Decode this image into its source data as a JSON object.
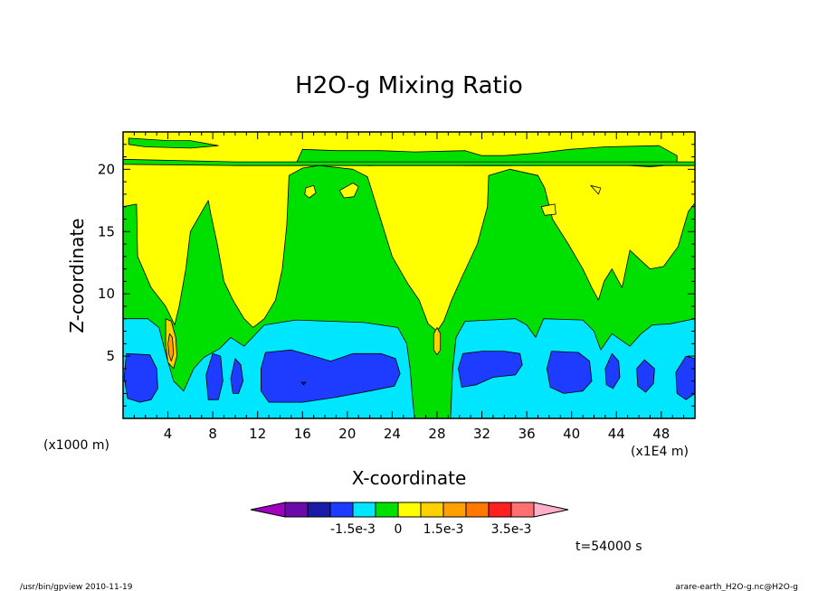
{
  "chart_data": {
    "type": "heatmap",
    "title": "H2O-g Mixing Ratio",
    "xlabel": "X-coordinate",
    "ylabel": "Z-coordinate",
    "x_unit": "(x1E4 m)",
    "y_unit": "(x1000 m)",
    "xlim": [
      0,
      51
    ],
    "ylim": [
      0,
      23
    ],
    "x_ticks": [
      4,
      8,
      12,
      16,
      20,
      24,
      28,
      32,
      36,
      40,
      44,
      48
    ],
    "y_ticks": [
      5,
      10,
      15,
      20
    ],
    "colorbar": {
      "colors": [
        "#a000c0",
        "#6a0aa8",
        "#1a1aa8",
        "#1e3cff",
        "#00e6ff",
        "#00e000",
        "#ffff00",
        "#ffd000",
        "#ffa000",
        "#ff7800",
        "#ff2020",
        "#ff7070",
        "#ffb0c8"
      ],
      "labels": [
        "-1.5e-3",
        "0",
        "1.5e-3",
        "3.5e-3"
      ]
    },
    "time_label": "t=54000 s",
    "regions": [
      {
        "color": "#00e000",
        "poly": [
          [
            0,
            17
          ],
          [
            1.2,
            17.2
          ],
          [
            1.3,
            13
          ],
          [
            2.5,
            10.5
          ],
          [
            3.8,
            9
          ],
          [
            4.6,
            7.5
          ],
          [
            5,
            9
          ],
          [
            5.6,
            12
          ],
          [
            6,
            15
          ],
          [
            7.6,
            17.5
          ],
          [
            7.8,
            16.5
          ],
          [
            8.4,
            14
          ],
          [
            9,
            11
          ],
          [
            9.8,
            9.5
          ],
          [
            10.8,
            8
          ],
          [
            11.6,
            7.3
          ],
          [
            12.6,
            8
          ],
          [
            13.6,
            9.5
          ],
          [
            14.2,
            12
          ],
          [
            14.6,
            15.5
          ],
          [
            14.8,
            19.5
          ],
          [
            16,
            20.1
          ],
          [
            17.5,
            20.3
          ],
          [
            20.5,
            20
          ],
          [
            21.8,
            19.4
          ],
          [
            22.8,
            16.5
          ],
          [
            24,
            13
          ],
          [
            25.4,
            10.8
          ],
          [
            26.4,
            9.5
          ],
          [
            27.2,
            7.6
          ],
          [
            28,
            7
          ],
          [
            28.6,
            7.8
          ],
          [
            29.3,
            9.5
          ],
          [
            30.3,
            11.5
          ],
          [
            31.6,
            14
          ],
          [
            32.5,
            17
          ],
          [
            32.6,
            19.5
          ],
          [
            34.5,
            20
          ],
          [
            37,
            19.5
          ],
          [
            37.6,
            18.5
          ],
          [
            38.3,
            16
          ],
          [
            39.7,
            14
          ],
          [
            41,
            12
          ],
          [
            41.8,
            10.5
          ],
          [
            42.4,
            9.5
          ],
          [
            42.9,
            11
          ],
          [
            43.6,
            12
          ],
          [
            44.5,
            10.5
          ],
          [
            45.2,
            13.5
          ],
          [
            47,
            12
          ],
          [
            48.2,
            12.2
          ],
          [
            49.5,
            13.8
          ],
          [
            50.4,
            16.6
          ],
          [
            51,
            17.3
          ],
          [
            51,
            0
          ],
          [
            0,
            0
          ]
        ]
      },
      {
        "color": "#00e000",
        "poly": [
          [
            15.5,
            20.6
          ],
          [
            16,
            21.6
          ],
          [
            19,
            21.5
          ],
          [
            23,
            21.5
          ],
          [
            26,
            21.4
          ],
          [
            30.5,
            21.5
          ],
          [
            32,
            21.1
          ],
          [
            34,
            21.1
          ],
          [
            37,
            21.3
          ],
          [
            39.8,
            21.6
          ],
          [
            43,
            21.8
          ],
          [
            47.8,
            21.9
          ],
          [
            49.4,
            21.1
          ],
          [
            49.4,
            20.4
          ],
          [
            47,
            20.2
          ],
          [
            43.5,
            20.4
          ],
          [
            38.5,
            20.5
          ],
          [
            34.5,
            20.3
          ],
          [
            30.5,
            20.3
          ],
          [
            26.5,
            20.4
          ],
          [
            22,
            20.3
          ],
          [
            18,
            20.4
          ],
          [
            15.5,
            20.6
          ]
        ]
      },
      {
        "color": "#00e000",
        "poly": [
          [
            0.5,
            22.5
          ],
          [
            4,
            22.3
          ],
          [
            6,
            22.3
          ],
          [
            8.5,
            21.9
          ],
          [
            6,
            21.7
          ],
          [
            2,
            21.8
          ],
          [
            0.5,
            22
          ]
        ]
      },
      {
        "color": "#00e000",
        "poly": [
          [
            0,
            20.8
          ],
          [
            10,
            20.6
          ],
          [
            20,
            20.6
          ],
          [
            30,
            20.6
          ],
          [
            40,
            20.6
          ],
          [
            51,
            20.6
          ],
          [
            51,
            20.3
          ],
          [
            40,
            20.3
          ],
          [
            30,
            20.3
          ],
          [
            20,
            20.3
          ],
          [
            10,
            20.3
          ],
          [
            0,
            20.4
          ]
        ]
      },
      {
        "color": "#00e6ff",
        "poly": [
          [
            0,
            8
          ],
          [
            2.2,
            8
          ],
          [
            3.2,
            7.3
          ],
          [
            3.8,
            5.2
          ],
          [
            4.5,
            3
          ],
          [
            5.4,
            2.2
          ],
          [
            6.3,
            4
          ],
          [
            7.2,
            4.9
          ],
          [
            8.6,
            5.6
          ],
          [
            9.6,
            6.5
          ],
          [
            10.8,
            5.8
          ],
          [
            12.6,
            7.5
          ],
          [
            15.4,
            7.9
          ],
          [
            21.5,
            7.7
          ],
          [
            24.5,
            7.3
          ],
          [
            25.3,
            6
          ],
          [
            25.6,
            4
          ],
          [
            25.8,
            1.8
          ],
          [
            26,
            0
          ],
          [
            0,
            0
          ]
        ]
      },
      {
        "color": "#00e6ff",
        "poly": [
          [
            29.2,
            0
          ],
          [
            29.4,
            4
          ],
          [
            29.7,
            6.5
          ],
          [
            30.5,
            7.8
          ],
          [
            35,
            8
          ],
          [
            36,
            7.5
          ],
          [
            36.8,
            6.5
          ],
          [
            37.5,
            8
          ],
          [
            41,
            7.9
          ],
          [
            42,
            7
          ],
          [
            42.6,
            5.5
          ],
          [
            43.6,
            6.8
          ],
          [
            45.2,
            5.8
          ],
          [
            46.2,
            6.8
          ],
          [
            47.2,
            7.5
          ],
          [
            48.8,
            7.6
          ],
          [
            51,
            8
          ],
          [
            51,
            0
          ]
        ]
      },
      {
        "color": "#1e3cff",
        "poly": [
          [
            0.3,
            5.2
          ],
          [
            2.4,
            5.1
          ],
          [
            3,
            4
          ],
          [
            3.1,
            2.4
          ],
          [
            2.5,
            1.5
          ],
          [
            1.5,
            1.3
          ],
          [
            0.4,
            1.6
          ],
          [
            0.1,
            3.3
          ]
        ]
      },
      {
        "color": "#1e3cff",
        "poly": [
          [
            8,
            5.2
          ],
          [
            8.7,
            5
          ],
          [
            8.9,
            3
          ],
          [
            8.5,
            1.5
          ],
          [
            7.6,
            1.5
          ],
          [
            7.4,
            3.5
          ]
        ]
      },
      {
        "color": "#1e3cff",
        "poly": [
          [
            10,
            4.8
          ],
          [
            10.5,
            4.3
          ],
          [
            10.7,
            3
          ],
          [
            10.3,
            2
          ],
          [
            9.8,
            2
          ],
          [
            9.6,
            3.2
          ]
        ]
      },
      {
        "color": "#1e3cff",
        "poly": [
          [
            12.7,
            5.3
          ],
          [
            15,
            5.5
          ],
          [
            17,
            5
          ],
          [
            18.5,
            4.6
          ],
          [
            20.5,
            5.2
          ],
          [
            23,
            5.2
          ],
          [
            24.3,
            4.8
          ],
          [
            24.7,
            3.6
          ],
          [
            24.2,
            2.6
          ],
          [
            22,
            2.2
          ],
          [
            19,
            1.7
          ],
          [
            16,
            1.3
          ],
          [
            13,
            1.3
          ],
          [
            12.3,
            2.2
          ],
          [
            12.3,
            4
          ]
        ]
      },
      {
        "color": "#1e3cff",
        "poly": [
          [
            30.3,
            5.2
          ],
          [
            32,
            5.4
          ],
          [
            34,
            5.4
          ],
          [
            35.4,
            5.2
          ],
          [
            35.6,
            4.3
          ],
          [
            35,
            3.5
          ],
          [
            33,
            3.3
          ],
          [
            31.5,
            2.7
          ],
          [
            30.2,
            2.5
          ],
          [
            29.9,
            4
          ]
        ]
      },
      {
        "color": "#1e3cff",
        "poly": [
          [
            38.2,
            5.4
          ],
          [
            40.6,
            5.3
          ],
          [
            41.6,
            4.6
          ],
          [
            41.8,
            3
          ],
          [
            41,
            2.2
          ],
          [
            39.3,
            2
          ],
          [
            38.1,
            2.5
          ],
          [
            37.8,
            4
          ]
        ]
      },
      {
        "color": "#1e3cff",
        "poly": [
          [
            43.6,
            5.2
          ],
          [
            44.2,
            4.6
          ],
          [
            44.3,
            3.3
          ],
          [
            43.7,
            2.4
          ],
          [
            43.1,
            2.7
          ],
          [
            43,
            4
          ]
        ]
      },
      {
        "color": "#1e3cff",
        "poly": [
          [
            46.5,
            4.7
          ],
          [
            47.4,
            4
          ],
          [
            47.3,
            2.8
          ],
          [
            46.6,
            2.1
          ],
          [
            45.9,
            2.6
          ],
          [
            45.8,
            4
          ]
        ]
      },
      {
        "color": "#1e3cff",
        "poly": [
          [
            50.2,
            5
          ],
          [
            51,
            4.8
          ],
          [
            51,
            2
          ],
          [
            50.2,
            1.5
          ],
          [
            49.4,
            2
          ],
          [
            49.3,
            3.7
          ]
        ]
      },
      {
        "color": "#ffd000",
        "poly": [
          [
            3.8,
            8
          ],
          [
            4.3,
            7.8
          ],
          [
            4.7,
            6.5
          ],
          [
            4.8,
            5
          ],
          [
            4.5,
            4
          ],
          [
            4,
            4.5
          ],
          [
            3.8,
            6
          ]
        ]
      },
      {
        "color": "#ffa000",
        "poly": [
          [
            4.15,
            6.8
          ],
          [
            4.4,
            6.5
          ],
          [
            4.5,
            5.2
          ],
          [
            4.3,
            4.6
          ],
          [
            4.1,
            5.1
          ],
          [
            4,
            6
          ]
        ]
      },
      {
        "color": "#ffd000",
        "poly": [
          [
            28,
            7.3
          ],
          [
            28.3,
            6.8
          ],
          [
            28.3,
            5.5
          ],
          [
            28,
            5.1
          ],
          [
            27.7,
            5.5
          ],
          [
            27.7,
            6.8
          ]
        ]
      },
      {
        "color": "#ffff00",
        "poly": [
          [
            16.3,
            18.5
          ],
          [
            17,
            18.7
          ],
          [
            17.2,
            18.1
          ],
          [
            16.6,
            17.7
          ],
          [
            16.2,
            18
          ]
        ]
      },
      {
        "color": "#ffff00",
        "poly": [
          [
            19.3,
            18.3
          ],
          [
            20.5,
            18.9
          ],
          [
            21,
            18.6
          ],
          [
            20.6,
            17.8
          ],
          [
            19.7,
            17.7
          ]
        ]
      },
      {
        "color": "#ffff00",
        "poly": [
          [
            37.3,
            17
          ],
          [
            38.5,
            17.2
          ],
          [
            38.6,
            16.4
          ],
          [
            37.6,
            16.3
          ]
        ]
      },
      {
        "color": "#ffff00",
        "poly": [
          [
            41.7,
            18.7
          ],
          [
            42.6,
            18.5
          ],
          [
            42.4,
            18
          ]
        ]
      },
      {
        "color": "#1a1aa8",
        "poly": [
          [
            15.9,
            2.9
          ],
          [
            16.3,
            2.9
          ],
          [
            16.1,
            2.7
          ]
        ]
      }
    ]
  },
  "footer": {
    "left": "/usr/bin/gpview   2010-11-19",
    "right": "arare-earth_H2O-g.nc@H2O-g"
  }
}
